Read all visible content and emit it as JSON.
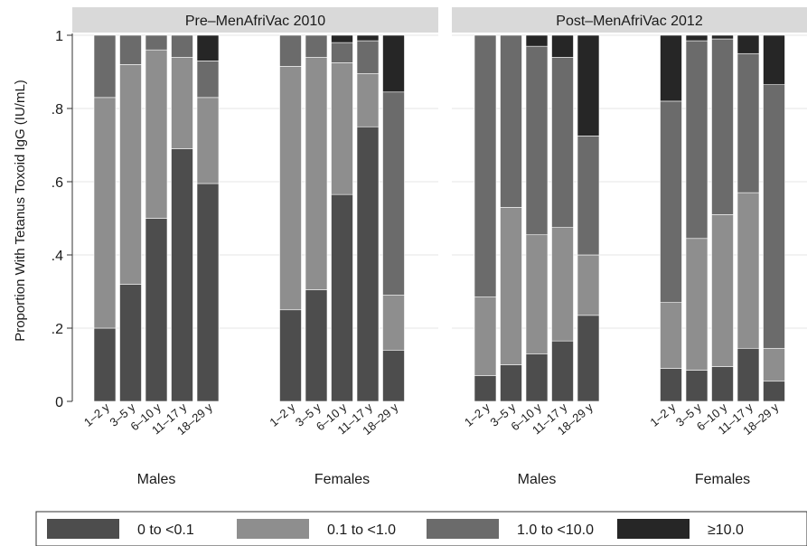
{
  "chart_data": {
    "type": "bar",
    "stacked": true,
    "ylabel": "Proportion With Tetanus Toxoid IgG (IU/mL)",
    "ylim": [
      0,
      1
    ],
    "yticks": [
      0,
      0.2,
      0.4,
      0.6,
      0.8,
      1
    ],
    "ytick_labels": [
      "0",
      ".2",
      ".4",
      ".6",
      ".8",
      "1"
    ],
    "categories": [
      "1–2 y",
      "3–5 y",
      "6–10 y",
      "11–17 y",
      "18–29 y"
    ],
    "groups": [
      "Males",
      "Females"
    ],
    "grid": true,
    "legend_position": "bottom",
    "series": [
      {
        "name": "0 to <0.1",
        "color": "#4d4d4d"
      },
      {
        "name": "0.1 to <1.0",
        "color": "#8e8e8e"
      },
      {
        "name": "1.0 to <10.0",
        "color": "#6b6b6b"
      },
      {
        "name": "≥10.0",
        "color": "#262626"
      }
    ],
    "panels": [
      {
        "title": "Pre–MenAfriVac 2010",
        "groups": [
          {
            "name": "Males",
            "bars": [
              [
                0.2,
                0.63,
                0.17,
                0.0
              ],
              [
                0.32,
                0.6,
                0.08,
                0.0
              ],
              [
                0.5,
                0.46,
                0.04,
                0.0
              ],
              [
                0.69,
                0.25,
                0.06,
                0.0
              ],
              [
                0.595,
                0.235,
                0.1,
                0.07
              ]
            ]
          },
          {
            "name": "Females",
            "bars": [
              [
                0.25,
                0.665,
                0.085,
                0.0
              ],
              [
                0.305,
                0.635,
                0.06,
                0.0
              ],
              [
                0.565,
                0.36,
                0.055,
                0.02
              ],
              [
                0.75,
                0.145,
                0.09,
                0.015
              ],
              [
                0.14,
                0.15,
                0.555,
                0.155
              ]
            ]
          }
        ]
      },
      {
        "title": "Post–MenAfriVac 2012",
        "groups": [
          {
            "name": "Males",
            "bars": [
              [
                0.07,
                0.215,
                0.715,
                0.0
              ],
              [
                0.1,
                0.43,
                0.47,
                0.0
              ],
              [
                0.13,
                0.325,
                0.515,
                0.03
              ],
              [
                0.165,
                0.31,
                0.465,
                0.06
              ],
              [
                0.235,
                0.165,
                0.325,
                0.275
              ]
            ]
          },
          {
            "name": "Females",
            "bars": [
              [
                0.09,
                0.18,
                0.55,
                0.18
              ],
              [
                0.085,
                0.36,
                0.54,
                0.015
              ],
              [
                0.095,
                0.415,
                0.48,
                0.01
              ],
              [
                0.145,
                0.425,
                0.38,
                0.05
              ],
              [
                0.055,
                0.09,
                0.72,
                0.135
              ]
            ]
          }
        ]
      }
    ]
  }
}
